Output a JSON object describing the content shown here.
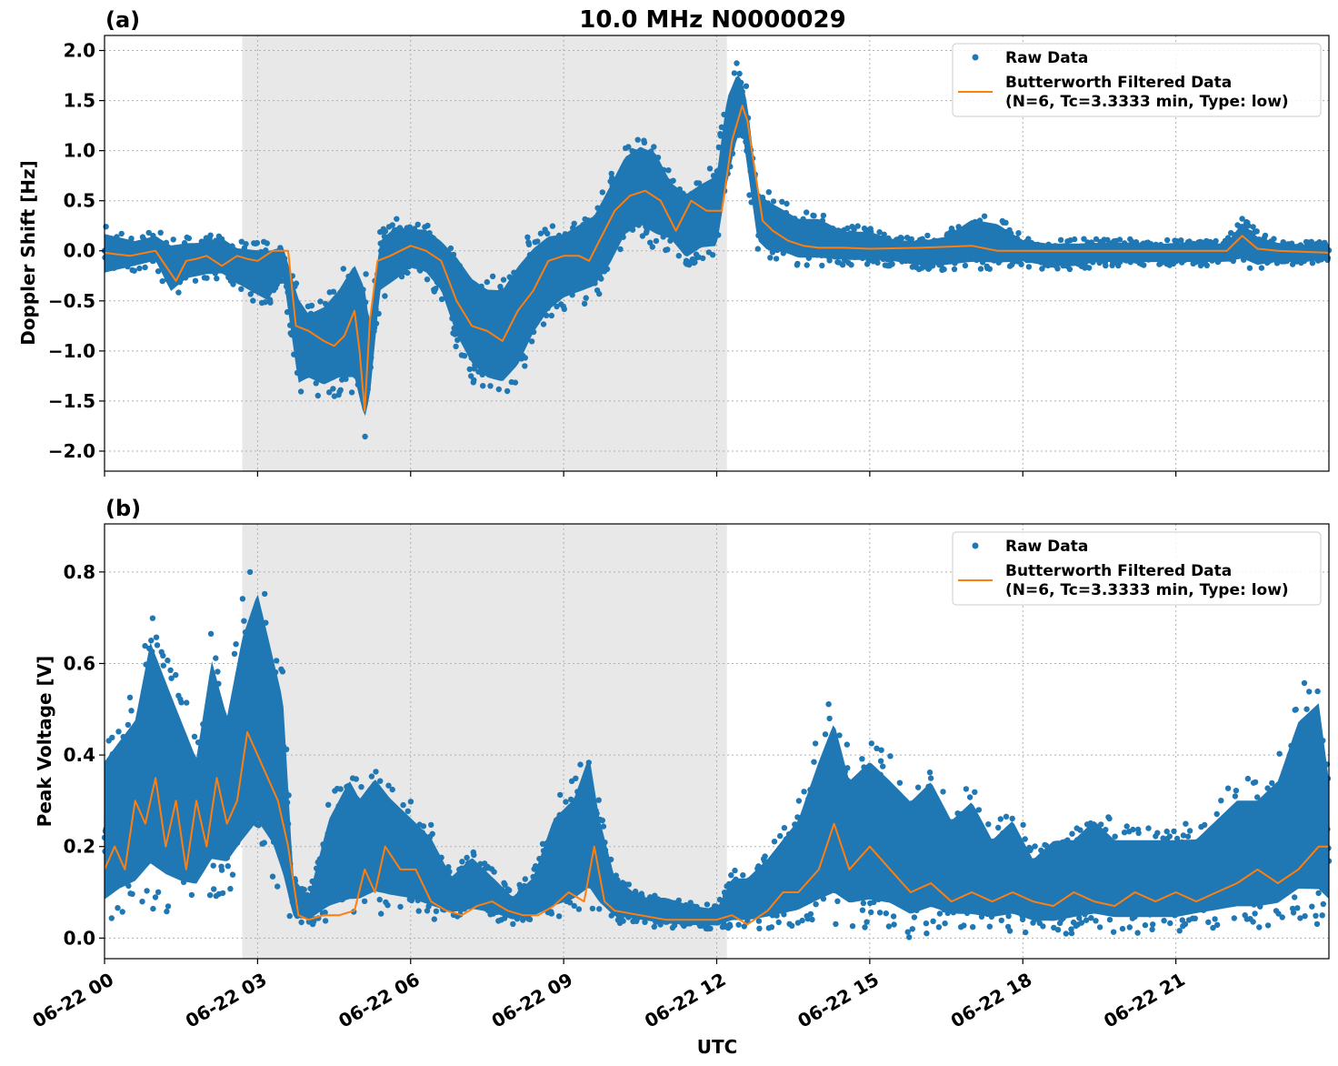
{
  "figure": {
    "title": "10.0 MHz N0000029",
    "xlabel": "UTC",
    "x_tick_labels": [
      "06-22 00",
      "06-22 03",
      "06-22 06",
      "06-22 09",
      "06-22 12",
      "06-22 15",
      "06-22 18",
      "06-22 21"
    ]
  },
  "colors": {
    "raw": "#1f77b4",
    "filtered": "#ff7f0e",
    "shade": "#e8e8e8",
    "grid": "#b0b0b0"
  },
  "chart_data": [
    {
      "type": "scatter",
      "panel_label": "(a)",
      "ylabel": "Doppler Shift [Hz]",
      "xlim_hours": [
        0,
        24
      ],
      "ylim": [
        -2.2,
        2.15
      ],
      "y_tick_labels": [
        "2.0",
        "1.5",
        "1.0",
        "0.5",
        "0.0",
        "−0.5",
        "−1.0",
        "−1.5",
        "−2.0"
      ],
      "y_ticks": [
        2.0,
        1.5,
        1.0,
        0.5,
        0.0,
        -0.5,
        -1.0,
        -1.5,
        -2.0
      ],
      "shaded_span_hours": [
        2.7,
        12.2
      ],
      "grid": true,
      "legend_position": "top-right",
      "legend": [
        "Raw Data",
        "Butterworth Filtered Data",
        "(N=6, Tc=3.3333 min, Type: low)"
      ],
      "series": [
        {
          "name": "Butterworth Filtered Data",
          "x_hours": [
            0,
            0.5,
            1.0,
            1.2,
            1.4,
            1.6,
            1.8,
            2.0,
            2.3,
            2.6,
            2.8,
            3.0,
            3.3,
            3.6,
            3.75,
            4.0,
            4.3,
            4.5,
            4.7,
            4.9,
            5.0,
            5.1,
            5.2,
            5.35,
            5.6,
            5.8,
            6.0,
            6.3,
            6.6,
            6.9,
            7.2,
            7.5,
            7.8,
            8.1,
            8.4,
            8.7,
            9.0,
            9.3,
            9.5,
            9.7,
            10.0,
            10.3,
            10.6,
            10.9,
            11.2,
            11.5,
            11.8,
            12.1,
            12.3,
            12.5,
            12.6,
            12.75,
            12.9,
            13.1,
            13.4,
            13.7,
            14.0,
            14.5,
            15.0,
            16.0,
            17.0,
            17.5,
            18.0,
            19.0,
            20.0,
            21.0,
            22.0,
            22.3,
            22.6,
            23.0,
            24.0
          ],
          "y": [
            -0.02,
            -0.05,
            0.0,
            -0.15,
            -0.3,
            -0.1,
            -0.08,
            -0.05,
            -0.15,
            -0.05,
            -0.08,
            -0.1,
            0.0,
            0.0,
            -0.75,
            -0.8,
            -0.9,
            -0.95,
            -0.85,
            -0.6,
            -1.0,
            -1.6,
            -0.7,
            -0.1,
            -0.05,
            0.0,
            0.05,
            0.0,
            -0.1,
            -0.5,
            -0.75,
            -0.8,
            -0.9,
            -0.6,
            -0.4,
            -0.1,
            -0.05,
            -0.05,
            -0.1,
            0.1,
            0.4,
            0.55,
            0.6,
            0.5,
            0.2,
            0.5,
            0.4,
            0.4,
            1.1,
            1.45,
            1.3,
            0.8,
            0.3,
            0.2,
            0.1,
            0.05,
            0.03,
            0.03,
            0.02,
            0.03,
            0.05,
            0.0,
            0.0,
            0.0,
            0.0,
            0.0,
            0.0,
            0.15,
            0.02,
            0.0,
            -0.02
          ]
        },
        {
          "name": "Raw Data",
          "x_hours": [
            0,
            0.3,
            0.6,
            1.0,
            1.3,
            1.6,
            2.0,
            2.3,
            2.6,
            2.9,
            3.2,
            3.5,
            3.8,
            4.0,
            4.3,
            4.6,
            4.9,
            5.1,
            5.2,
            5.4,
            5.7,
            6.0,
            6.3,
            6.6,
            6.9,
            7.2,
            7.5,
            7.8,
            8.1,
            8.4,
            8.7,
            9.0,
            9.3,
            9.6,
            9.9,
            10.2,
            10.5,
            10.8,
            11.1,
            11.4,
            11.7,
            12.0,
            12.2,
            12.4,
            12.5,
            12.6,
            12.8,
            13.0,
            13.3,
            13.6,
            14.0,
            14.5,
            15.0,
            15.5,
            16.0,
            16.5,
            17.0,
            17.5,
            18.0,
            18.5,
            19.0,
            19.5,
            20.0,
            20.5,
            21.0,
            21.5,
            22.0,
            22.3,
            22.6,
            23.0,
            23.5,
            24.0
          ],
          "y_low": [
            -0.3,
            -0.25,
            -0.2,
            -0.15,
            -0.5,
            -0.35,
            -0.3,
            -0.3,
            -0.4,
            -0.5,
            -0.6,
            -0.3,
            -1.5,
            -1.4,
            -1.5,
            -1.45,
            -1.5,
            -1.95,
            -1.6,
            -0.5,
            -0.4,
            -0.25,
            -0.3,
            -0.5,
            -1.0,
            -1.3,
            -1.45,
            -1.5,
            -1.35,
            -1.0,
            -0.75,
            -0.6,
            -0.55,
            -0.5,
            -0.3,
            0.0,
            0.1,
            0.0,
            0.0,
            -0.2,
            -0.1,
            -0.1,
            0.5,
            1.0,
            1.1,
            0.7,
            0.0,
            -0.1,
            -0.1,
            -0.15,
            -0.15,
            -0.15,
            -0.15,
            -0.15,
            -0.2,
            -0.2,
            -0.2,
            -0.2,
            -0.15,
            -0.2,
            -0.2,
            -0.15,
            -0.15,
            -0.15,
            -0.15,
            -0.15,
            -0.15,
            -0.15,
            -0.2,
            -0.15,
            -0.15,
            -0.12
          ],
          "y_high": [
            0.25,
            0.2,
            0.15,
            0.2,
            0.15,
            0.15,
            0.15,
            0.2,
            0.1,
            0.1,
            0.1,
            0.1,
            -0.3,
            -0.5,
            -0.4,
            -0.2,
            0.1,
            -0.1,
            -0.6,
            0.2,
            0.35,
            0.3,
            0.3,
            0.2,
            0.1,
            -0.1,
            -0.2,
            -0.2,
            0.05,
            0.2,
            0.3,
            0.3,
            0.4,
            0.5,
            0.8,
            1.1,
            1.2,
            1.15,
            0.8,
            0.7,
            0.8,
            0.9,
            1.7,
            1.9,
            1.8,
            1.6,
            0.7,
            0.6,
            0.5,
            0.4,
            0.4,
            0.25,
            0.25,
            0.15,
            0.15,
            0.2,
            0.4,
            0.35,
            0.15,
            0.12,
            0.12,
            0.12,
            0.12,
            0.1,
            0.12,
            0.1,
            0.12,
            0.35,
            0.2,
            0.12,
            0.1,
            0.1
          ]
        }
      ]
    },
    {
      "type": "scatter",
      "panel_label": "(b)",
      "ylabel": "Peak Voltage [V]",
      "xlim_hours": [
        0,
        24
      ],
      "ylim": [
        -0.045,
        0.905
      ],
      "y_tick_labels": [
        "0.8",
        "0.6",
        "0.4",
        "0.2",
        "0.0"
      ],
      "y_ticks": [
        0.8,
        0.6,
        0.4,
        0.2,
        0.0
      ],
      "shaded_span_hours": [
        2.7,
        12.2
      ],
      "grid": true,
      "legend_position": "top-right",
      "legend": [
        "Raw Data",
        "Butterworth Filtered Data",
        "(N=6, Tc=3.3333 min, Type: low)"
      ],
      "series": [
        {
          "name": "Butterworth Filtered Data",
          "x_hours": [
            0,
            0.2,
            0.4,
            0.6,
            0.8,
            1.0,
            1.2,
            1.4,
            1.6,
            1.8,
            2.0,
            2.2,
            2.4,
            2.6,
            2.8,
            3.0,
            3.2,
            3.4,
            3.6,
            3.8,
            4.0,
            4.3,
            4.6,
            4.9,
            5.1,
            5.3,
            5.5,
            5.8,
            6.1,
            6.4,
            6.7,
            7.0,
            7.3,
            7.6,
            7.9,
            8.2,
            8.5,
            8.8,
            9.1,
            9.4,
            9.6,
            9.8,
            10.0,
            10.5,
            11.0,
            11.5,
            12.0,
            12.3,
            12.6,
            13.0,
            13.3,
            13.6,
            14.0,
            14.3,
            14.6,
            15.0,
            15.4,
            15.8,
            16.2,
            16.6,
            17.0,
            17.4,
            17.8,
            18.2,
            18.6,
            19.0,
            19.4,
            19.8,
            20.2,
            20.6,
            21.0,
            21.4,
            21.8,
            22.2,
            22.6,
            23.0,
            23.4,
            23.8,
            24.0
          ],
          "y": [
            0.15,
            0.2,
            0.15,
            0.3,
            0.25,
            0.35,
            0.2,
            0.3,
            0.15,
            0.3,
            0.2,
            0.35,
            0.25,
            0.3,
            0.45,
            0.4,
            0.35,
            0.3,
            0.2,
            0.05,
            0.04,
            0.05,
            0.05,
            0.06,
            0.15,
            0.1,
            0.2,
            0.15,
            0.15,
            0.08,
            0.06,
            0.05,
            0.07,
            0.08,
            0.06,
            0.05,
            0.05,
            0.07,
            0.1,
            0.08,
            0.2,
            0.08,
            0.06,
            0.05,
            0.04,
            0.04,
            0.04,
            0.05,
            0.03,
            0.06,
            0.1,
            0.1,
            0.15,
            0.25,
            0.15,
            0.2,
            0.15,
            0.1,
            0.12,
            0.08,
            0.1,
            0.08,
            0.1,
            0.08,
            0.07,
            0.1,
            0.08,
            0.07,
            0.1,
            0.08,
            0.1,
            0.08,
            0.1,
            0.12,
            0.15,
            0.12,
            0.15,
            0.2,
            0.2
          ]
        },
        {
          "name": "Raw Data",
          "x_hours": [
            0,
            0.3,
            0.6,
            0.9,
            1.2,
            1.5,
            1.8,
            2.1,
            2.4,
            2.7,
            3.0,
            3.3,
            3.5,
            3.7,
            4.0,
            4.4,
            4.8,
            5.0,
            5.3,
            5.6,
            6.0,
            6.4,
            6.8,
            7.2,
            7.6,
            8.0,
            8.4,
            8.8,
            9.2,
            9.5,
            9.7,
            10.0,
            10.5,
            11.0,
            11.5,
            12.0,
            12.3,
            12.6,
            13.0,
            13.3,
            13.6,
            14.0,
            14.3,
            14.6,
            15.0,
            15.4,
            15.8,
            16.2,
            16.6,
            17.0,
            17.4,
            17.8,
            18.2,
            18.6,
            19.0,
            19.4,
            19.8,
            20.2,
            20.6,
            21.0,
            21.4,
            21.8,
            22.2,
            22.6,
            23.0,
            23.4,
            23.8,
            24.0
          ],
          "y_low": [
            0.02,
            0.04,
            0.05,
            0.06,
            0.05,
            0.05,
            0.06,
            0.08,
            0.1,
            0.12,
            0.15,
            0.12,
            0.06,
            0.03,
            0.03,
            0.03,
            0.03,
            0.04,
            0.05,
            0.05,
            0.05,
            0.04,
            0.04,
            0.04,
            0.04,
            0.03,
            0.03,
            0.03,
            0.04,
            0.05,
            0.04,
            0.03,
            0.03,
            0.02,
            0.02,
            0.02,
            0.02,
            0.02,
            0.02,
            0.02,
            0.02,
            0.02,
            0.02,
            0.02,
            0.02,
            0.02,
            0.0,
            0.01,
            0.01,
            0.0,
            0.01,
            0.01,
            0.01,
            0.0,
            0.01,
            0.01,
            0.01,
            0.01,
            0.01,
            0.01,
            0.02,
            0.02,
            0.02,
            0.02,
            0.02,
            0.03,
            0.02,
            0.03
          ],
          "y_high": [
            0.45,
            0.5,
            0.55,
            0.75,
            0.65,
            0.55,
            0.45,
            0.7,
            0.55,
            0.75,
            0.86,
            0.7,
            0.6,
            0.15,
            0.1,
            0.3,
            0.4,
            0.35,
            0.4,
            0.35,
            0.3,
            0.25,
            0.15,
            0.2,
            0.15,
            0.1,
            0.15,
            0.3,
            0.35,
            0.46,
            0.3,
            0.15,
            0.1,
            0.1,
            0.08,
            0.07,
            0.15,
            0.15,
            0.2,
            0.25,
            0.3,
            0.45,
            0.55,
            0.4,
            0.45,
            0.4,
            0.35,
            0.4,
            0.3,
            0.35,
            0.25,
            0.3,
            0.2,
            0.25,
            0.25,
            0.3,
            0.25,
            0.25,
            0.25,
            0.25,
            0.25,
            0.3,
            0.35,
            0.35,
            0.4,
            0.55,
            0.6,
            0.4
          ]
        }
      ]
    }
  ]
}
